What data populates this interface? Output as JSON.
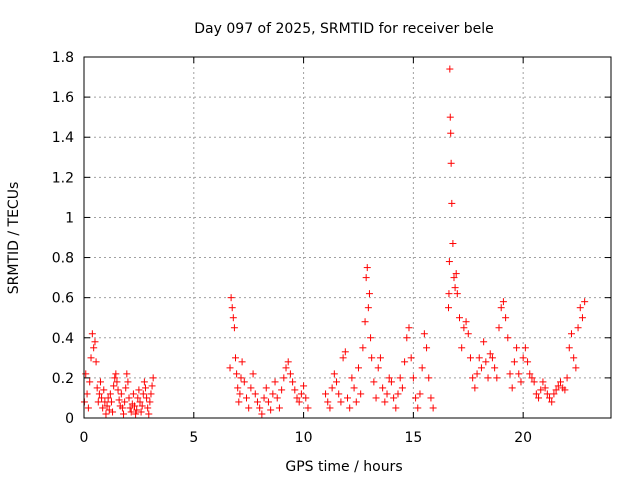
{
  "chart_data": {
    "type": "scatter",
    "title": "Day 097 of 2025, SRMTID for receiver bele",
    "xlabel": "GPS time / hours",
    "ylabel": "SRMTID / TECUs",
    "xlim": [
      0,
      24
    ],
    "ylim": [
      0,
      1.8
    ],
    "xticks": [
      0,
      5,
      10,
      15,
      20
    ],
    "yticks": [
      0,
      0.2,
      0.4,
      0.6,
      0.8,
      1,
      1.2,
      1.4,
      1.6,
      1.8
    ],
    "ytick_labels": [
      "0",
      "0.2",
      "0.4",
      "0.6",
      "0.8",
      "1",
      "1.2",
      "1.4",
      "1.6",
      "1.8"
    ],
    "grid": true,
    "marker": "+",
    "color": "#ff0000",
    "series": [
      {
        "name": "SRMTID",
        "x": [
          0.02,
          0.08,
          0.14,
          0.2,
          0.26,
          0.32,
          0.38,
          0.44,
          0.5,
          0.55,
          0.6,
          0.65,
          0.7,
          0.75,
          0.8,
          0.85,
          0.9,
          0.95,
          1.0,
          1.05,
          1.1,
          1.15,
          1.2,
          1.25,
          1.3,
          1.35,
          1.4,
          1.45,
          1.5,
          1.55,
          1.6,
          1.65,
          1.7,
          1.75,
          1.8,
          1.85,
          1.9,
          1.95,
          2.0,
          2.05,
          2.1,
          2.15,
          2.2,
          2.25,
          2.3,
          2.35,
          2.4,
          2.45,
          2.5,
          2.55,
          2.6,
          2.65,
          2.7,
          2.75,
          2.8,
          2.85,
          2.9,
          2.95,
          3.0,
          3.05,
          3.1,
          3.15,
          6.65,
          6.7,
          6.75,
          6.8,
          6.85,
          6.9,
          6.95,
          7.0,
          7.05,
          7.1,
          7.15,
          7.2,
          7.3,
          7.4,
          7.5,
          7.6,
          7.7,
          7.8,
          7.9,
          8.0,
          8.1,
          8.2,
          8.3,
          8.4,
          8.5,
          8.6,
          8.7,
          8.8,
          8.9,
          9.0,
          9.1,
          9.2,
          9.3,
          9.4,
          9.5,
          9.6,
          9.7,
          9.8,
          9.9,
          10.0,
          10.1,
          10.2,
          11.0,
          11.1,
          11.2,
          11.3,
          11.4,
          11.5,
          11.6,
          11.7,
          11.8,
          11.9,
          12.0,
          12.1,
          12.2,
          12.3,
          12.4,
          12.5,
          12.6,
          12.7,
          12.8,
          12.85,
          12.9,
          12.95,
          13.0,
          13.05,
          13.1,
          13.2,
          13.3,
          13.4,
          13.5,
          13.6,
          13.7,
          13.8,
          13.9,
          14.0,
          14.1,
          14.2,
          14.3,
          14.4,
          14.5,
          14.6,
          14.7,
          14.8,
          14.9,
          15.0,
          15.1,
          15.2,
          15.3,
          15.4,
          15.5,
          15.6,
          15.7,
          15.8,
          15.9,
          16.6,
          16.62,
          16.64,
          16.66,
          16.68,
          16.7,
          16.72,
          16.75,
          16.8,
          16.85,
          16.9,
          16.95,
          17.0,
          17.1,
          17.2,
          17.3,
          17.4,
          17.5,
          17.6,
          17.7,
          17.8,
          17.9,
          18.0,
          18.1,
          18.2,
          18.3,
          18.4,
          18.5,
          18.6,
          18.7,
          18.8,
          18.9,
          19.0,
          19.1,
          19.2,
          19.3,
          19.4,
          19.5,
          19.6,
          19.7,
          19.8,
          19.9,
          20.0,
          20.1,
          20.2,
          20.3,
          20.4,
          20.5,
          20.6,
          20.7,
          20.8,
          20.9,
          21.0,
          21.1,
          21.2,
          21.3,
          21.4,
          21.5,
          21.6,
          21.7,
          21.8,
          21.9,
          22.0,
          22.1,
          22.2,
          22.3,
          22.4,
          22.5,
          22.6,
          22.7,
          22.8
        ],
        "y": [
          0.08,
          0.22,
          0.12,
          0.05,
          0.18,
          0.3,
          0.42,
          0.35,
          0.38,
          0.28,
          0.15,
          0.08,
          0.12,
          0.18,
          0.1,
          0.05,
          0.14,
          0.08,
          0.02,
          0.06,
          0.1,
          0.04,
          0.12,
          0.08,
          0.03,
          0.16,
          0.2,
          0.22,
          0.18,
          0.14,
          0.09,
          0.06,
          0.12,
          0.05,
          0.02,
          0.08,
          0.15,
          0.22,
          0.18,
          0.1,
          0.05,
          0.03,
          0.07,
          0.12,
          0.06,
          0.02,
          0.04,
          0.1,
          0.14,
          0.08,
          0.03,
          0.06,
          0.12,
          0.18,
          0.15,
          0.1,
          0.05,
          0.02,
          0.08,
          0.12,
          0.16,
          0.2,
          0.25,
          0.6,
          0.55,
          0.5,
          0.45,
          0.3,
          0.22,
          0.15,
          0.08,
          0.12,
          0.2,
          0.28,
          0.18,
          0.1,
          0.05,
          0.15,
          0.22,
          0.12,
          0.08,
          0.05,
          0.02,
          0.1,
          0.15,
          0.08,
          0.04,
          0.12,
          0.18,
          0.1,
          0.05,
          0.14,
          0.2,
          0.25,
          0.28,
          0.22,
          0.18,
          0.14,
          0.1,
          0.08,
          0.12,
          0.16,
          0.1,
          0.05,
          0.12,
          0.08,
          0.05,
          0.15,
          0.22,
          0.18,
          0.12,
          0.08,
          0.3,
          0.33,
          0.1,
          0.05,
          0.2,
          0.15,
          0.08,
          0.25,
          0.12,
          0.35,
          0.48,
          0.7,
          0.75,
          0.55,
          0.62,
          0.4,
          0.3,
          0.18,
          0.1,
          0.25,
          0.3,
          0.15,
          0.08,
          0.12,
          0.2,
          0.18,
          0.1,
          0.05,
          0.12,
          0.2,
          0.15,
          0.28,
          0.4,
          0.45,
          0.3,
          0.2,
          0.1,
          0.05,
          0.12,
          0.25,
          0.42,
          0.35,
          0.2,
          0.1,
          0.05,
          0.55,
          0.62,
          0.78,
          1.74,
          1.5,
          1.42,
          1.27,
          1.07,
          0.87,
          0.7,
          0.65,
          0.72,
          0.62,
          0.5,
          0.35,
          0.45,
          0.48,
          0.42,
          0.3,
          0.2,
          0.15,
          0.22,
          0.3,
          0.25,
          0.38,
          0.28,
          0.2,
          0.32,
          0.3,
          0.25,
          0.2,
          0.45,
          0.55,
          0.58,
          0.5,
          0.4,
          0.22,
          0.15,
          0.28,
          0.35,
          0.22,
          0.18,
          0.3,
          0.35,
          0.28,
          0.22,
          0.2,
          0.18,
          0.12,
          0.1,
          0.14,
          0.18,
          0.15,
          0.12,
          0.1,
          0.08,
          0.12,
          0.14,
          0.16,
          0.18,
          0.15,
          0.14,
          0.2,
          0.35,
          0.42,
          0.3,
          0.25,
          0.45,
          0.55,
          0.5,
          0.58
        ]
      }
    ]
  }
}
